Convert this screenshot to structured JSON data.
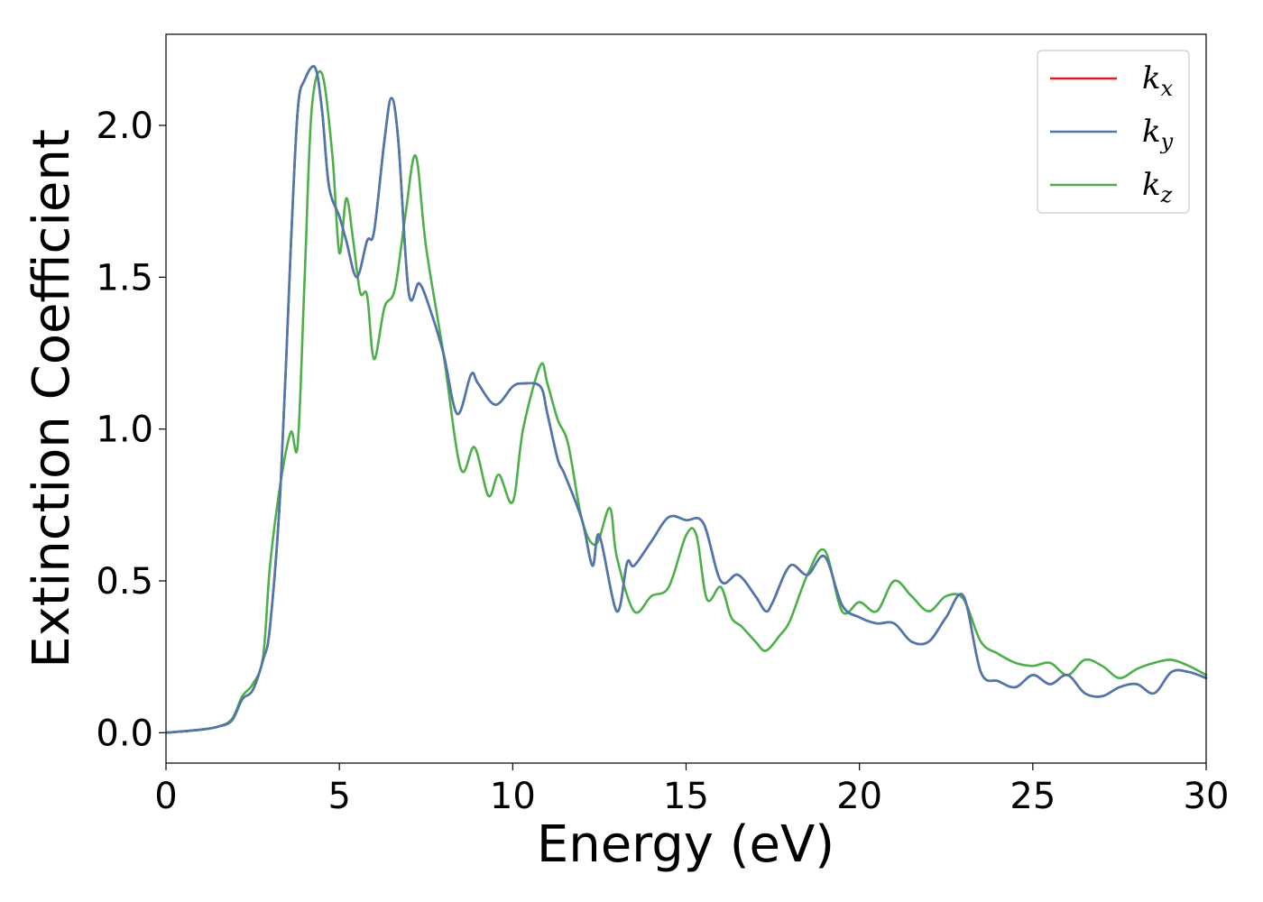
{
  "chart_data": {
    "type": "line",
    "title": "",
    "xlabel": "Energy (eV)",
    "ylabel": "Extinction Coefficient",
    "xlim": [
      0,
      30
    ],
    "ylim": [
      -0.1,
      2.3
    ],
    "xticks": [
      0,
      5,
      10,
      15,
      20,
      25,
      30
    ],
    "xtick_labels": [
      "0",
      "5",
      "10",
      "15",
      "20",
      "25",
      "30"
    ],
    "yticks": [
      0.0,
      0.5,
      1.0,
      1.5,
      2.0
    ],
    "ytick_labels": [
      "0.0",
      "0.5",
      "1.0",
      "1.5",
      "2.0"
    ],
    "grid": false,
    "legend_position": "top-right",
    "series": [
      {
        "name": "k_x",
        "legend_base": "k",
        "legend_sub": "x",
        "color": "#e41a1c",
        "x": [
          0,
          1,
          1.5,
          1.9,
          2.2,
          2.5,
          2.8,
          3.0,
          3.3,
          3.6,
          3.8,
          4.0,
          4.3,
          4.5,
          4.7,
          5.0,
          5.2,
          5.5,
          5.8,
          6.0,
          6.3,
          6.5,
          6.7,
          7.0,
          7.3,
          7.6,
          8.0,
          8.4,
          8.8,
          9.0,
          9.5,
          10.0,
          10.3,
          10.8,
          11.0,
          11.3,
          11.5,
          12.0,
          12.3,
          12.5,
          13.0,
          13.3,
          13.5,
          14.0,
          14.5,
          15.0,
          15.5,
          16.0,
          16.5,
          17.0,
          17.3,
          17.5,
          18.0,
          18.5,
          19.0,
          19.5,
          20.0,
          20.5,
          21.0,
          21.5,
          22.0,
          22.5,
          23.0,
          23.5,
          24.0,
          24.5,
          25.0,
          25.5,
          26.0,
          26.5,
          27.0,
          27.5,
          28.0,
          28.5,
          29.0,
          29.5,
          30.0
        ],
        "values": [
          0,
          0.01,
          0.02,
          0.04,
          0.11,
          0.14,
          0.24,
          0.35,
          0.8,
          1.6,
          2.05,
          2.15,
          2.19,
          2.05,
          1.8,
          1.7,
          1.62,
          1.5,
          1.62,
          1.65,
          1.95,
          2.09,
          1.95,
          1.45,
          1.48,
          1.4,
          1.25,
          1.05,
          1.18,
          1.15,
          1.08,
          1.14,
          1.15,
          1.14,
          1.05,
          0.9,
          0.85,
          0.7,
          0.55,
          0.65,
          0.4,
          0.56,
          0.55,
          0.63,
          0.71,
          0.7,
          0.69,
          0.5,
          0.52,
          0.45,
          0.4,
          0.43,
          0.55,
          0.52,
          0.58,
          0.42,
          0.38,
          0.36,
          0.36,
          0.3,
          0.3,
          0.38,
          0.45,
          0.2,
          0.17,
          0.15,
          0.19,
          0.16,
          0.19,
          0.13,
          0.12,
          0.15,
          0.16,
          0.13,
          0.2,
          0.2,
          0.18
        ]
      },
      {
        "name": "k_y",
        "legend_base": "k",
        "legend_sub": "y",
        "color": "#4a78b0",
        "x": [
          0,
          1,
          1.5,
          1.9,
          2.2,
          2.5,
          2.8,
          3.0,
          3.3,
          3.6,
          3.8,
          4.0,
          4.3,
          4.5,
          4.7,
          5.0,
          5.2,
          5.5,
          5.8,
          6.0,
          6.3,
          6.5,
          6.7,
          7.0,
          7.3,
          7.6,
          8.0,
          8.4,
          8.8,
          9.0,
          9.5,
          10.0,
          10.3,
          10.8,
          11.0,
          11.3,
          11.5,
          12.0,
          12.3,
          12.5,
          13.0,
          13.3,
          13.5,
          14.0,
          14.5,
          15.0,
          15.5,
          16.0,
          16.5,
          17.0,
          17.3,
          17.5,
          18.0,
          18.5,
          19.0,
          19.5,
          20.0,
          20.5,
          21.0,
          21.5,
          22.0,
          22.5,
          23.0,
          23.5,
          24.0,
          24.5,
          25.0,
          25.5,
          26.0,
          26.5,
          27.0,
          27.5,
          28.0,
          28.5,
          29.0,
          29.5,
          30.0
        ],
        "values": [
          0,
          0.01,
          0.02,
          0.04,
          0.11,
          0.14,
          0.24,
          0.35,
          0.8,
          1.6,
          2.05,
          2.15,
          2.19,
          2.05,
          1.8,
          1.7,
          1.62,
          1.5,
          1.62,
          1.65,
          1.95,
          2.09,
          1.95,
          1.45,
          1.48,
          1.4,
          1.25,
          1.05,
          1.18,
          1.15,
          1.08,
          1.14,
          1.15,
          1.14,
          1.05,
          0.9,
          0.85,
          0.7,
          0.55,
          0.65,
          0.4,
          0.56,
          0.55,
          0.63,
          0.71,
          0.7,
          0.69,
          0.5,
          0.52,
          0.45,
          0.4,
          0.43,
          0.55,
          0.52,
          0.58,
          0.42,
          0.38,
          0.36,
          0.36,
          0.3,
          0.3,
          0.38,
          0.45,
          0.2,
          0.17,
          0.15,
          0.19,
          0.16,
          0.19,
          0.13,
          0.12,
          0.15,
          0.16,
          0.13,
          0.2,
          0.2,
          0.18
        ]
      },
      {
        "name": "k_z",
        "legend_base": "k",
        "legend_sub": "z",
        "color": "#4daf4a",
        "x": [
          0,
          1,
          1.5,
          1.9,
          2.2,
          2.5,
          2.8,
          3.0,
          3.3,
          3.6,
          3.8,
          4.0,
          4.2,
          4.5,
          4.8,
          5.0,
          5.2,
          5.4,
          5.6,
          5.8,
          6.0,
          6.3,
          6.6,
          6.9,
          7.2,
          7.5,
          8.0,
          8.5,
          8.9,
          9.3,
          9.6,
          10.0,
          10.3,
          10.8,
          11.0,
          11.3,
          11.6,
          12.0,
          12.4,
          12.8,
          13.0,
          13.5,
          14.0,
          14.5,
          15.0,
          15.3,
          15.6,
          16.0,
          16.3,
          16.6,
          17.0,
          17.3,
          17.7,
          18.0,
          18.5,
          19.0,
          19.5,
          20.0,
          20.5,
          21.0,
          21.5,
          22.0,
          22.5,
          23.0,
          23.5,
          24.0,
          24.5,
          25.0,
          25.5,
          26.0,
          26.5,
          27.0,
          27.5,
          28.0,
          28.5,
          29.0,
          29.5,
          30.0
        ],
        "values": [
          0,
          0.01,
          0.02,
          0.045,
          0.12,
          0.16,
          0.25,
          0.55,
          0.82,
          0.99,
          0.95,
          1.5,
          2.05,
          2.17,
          1.9,
          1.58,
          1.76,
          1.62,
          1.45,
          1.44,
          1.23,
          1.4,
          1.46,
          1.7,
          1.9,
          1.6,
          1.25,
          0.87,
          0.94,
          0.78,
          0.85,
          0.76,
          1.0,
          1.21,
          1.15,
          1.03,
          0.95,
          0.7,
          0.62,
          0.74,
          0.58,
          0.4,
          0.45,
          0.48,
          0.65,
          0.65,
          0.44,
          0.48,
          0.38,
          0.35,
          0.3,
          0.27,
          0.32,
          0.37,
          0.52,
          0.6,
          0.4,
          0.43,
          0.4,
          0.5,
          0.45,
          0.4,
          0.45,
          0.44,
          0.3,
          0.26,
          0.23,
          0.22,
          0.23,
          0.19,
          0.24,
          0.22,
          0.18,
          0.21,
          0.23,
          0.24,
          0.22,
          0.19
        ]
      }
    ]
  }
}
